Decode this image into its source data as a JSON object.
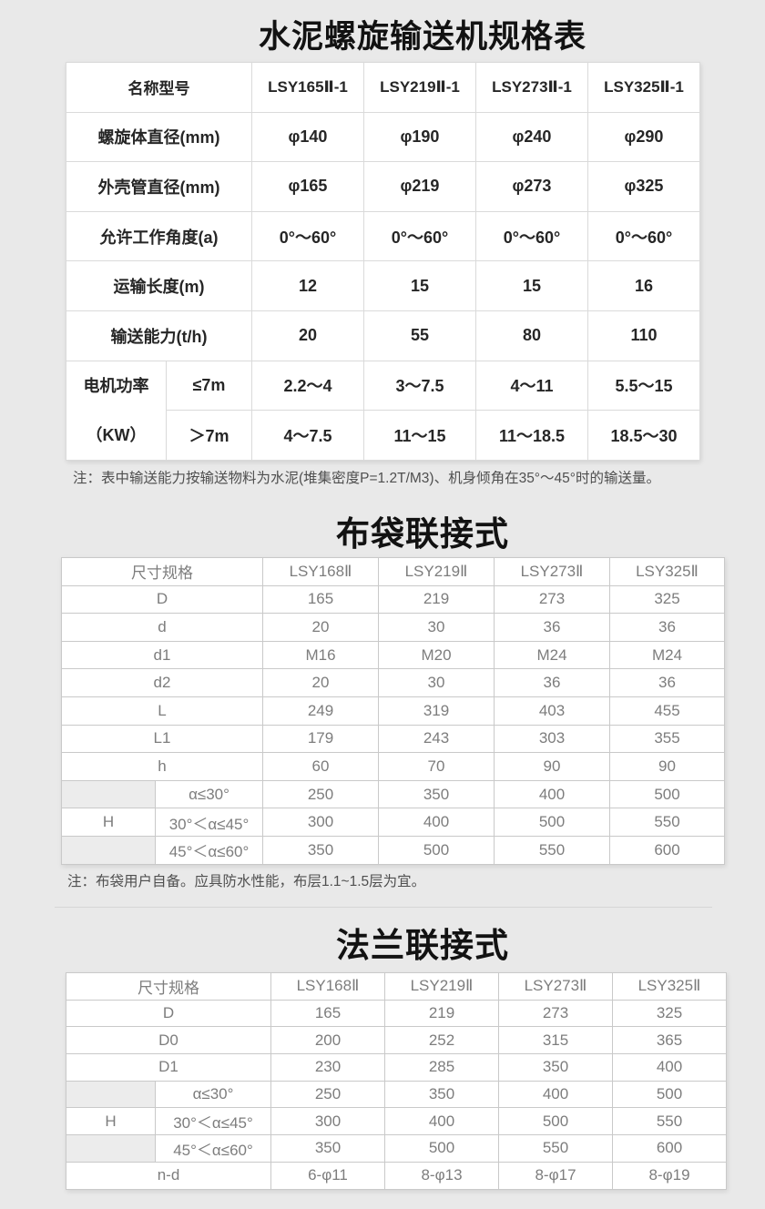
{
  "page": {
    "background": "#e9e9e9",
    "table_bg": "#ffffff",
    "gray_cell": "#ececec",
    "title_color": "#121212",
    "spec_text_color": "#262626",
    "dim_text_color": "#7d7d7d"
  },
  "spec_table": {
    "title": "水泥螺旋输送机规格表",
    "header": [
      "名称型号",
      "LSY165Ⅱ-1",
      "LSY219Ⅱ-1",
      "LSY273Ⅱ-1",
      "LSY325Ⅱ-1"
    ],
    "rows": [
      {
        "label": "螺旋体直径(mm)",
        "values": [
          "φ140",
          "φ190",
          "φ240",
          "φ290"
        ]
      },
      {
        "label": "外壳管直径(mm)",
        "values": [
          "φ165",
          "φ219",
          "φ273",
          "φ325"
        ]
      },
      {
        "label": "允许工作角度(a)",
        "values": [
          "0°～60°",
          "0°～60°",
          "0°～60°",
          "0°～60°"
        ]
      },
      {
        "label": "运输长度(m)",
        "values": [
          "12",
          "15",
          "15",
          "16"
        ]
      },
      {
        "label": "输送能力(t/h)",
        "values": [
          "20",
          "55",
          "80",
          "110"
        ]
      }
    ],
    "motor_block": {
      "label_line1": "电机功率",
      "label_line2": "（KW）",
      "rows": [
        {
          "cond": "≤7m",
          "values": [
            "2.2～4",
            "3～7.5",
            "4～11",
            "5.5～15"
          ]
        },
        {
          "cond": "＞7m",
          "values": [
            "4～7.5",
            "11～15",
            "11～18.5",
            "18.5～30"
          ]
        }
      ]
    },
    "note": "注：表中输送能力按输送物料为水泥(堆集密度P=1.2T/M3)、机身倾角在35°～45°时的输送量。"
  },
  "bag_table": {
    "title": "布袋联接式",
    "header": [
      "尺寸规格",
      "LSY168Ⅱ",
      "LSY219Ⅱ",
      "LSY273Ⅱ",
      "LSY325Ⅱ"
    ],
    "rows": [
      {
        "label": "D",
        "values": [
          "165",
          "219",
          "273",
          "325"
        ]
      },
      {
        "label": "d",
        "values": [
          "20",
          "30",
          "36",
          "36"
        ]
      },
      {
        "label": "d1",
        "values": [
          "M16",
          "M20",
          "M24",
          "M24"
        ]
      },
      {
        "label": "d2",
        "values": [
          "20",
          "30",
          "36",
          "36"
        ]
      },
      {
        "label": "L",
        "values": [
          "249",
          "319",
          "403",
          "455"
        ]
      },
      {
        "label": "L1",
        "values": [
          "179",
          "243",
          "303",
          "355"
        ]
      },
      {
        "label": "h",
        "values": [
          "60",
          "70",
          "90",
          "90"
        ]
      }
    ],
    "h_block": {
      "label": "H",
      "rows": [
        {
          "cond": "α≤30°",
          "values": [
            "250",
            "350",
            "400",
            "500"
          ]
        },
        {
          "cond": "30°＜α≤45°",
          "values": [
            "300",
            "400",
            "500",
            "550"
          ]
        },
        {
          "cond": "45°＜α≤60°",
          "values": [
            "350",
            "500",
            "550",
            "600"
          ]
        }
      ]
    },
    "rows_after": [],
    "note": "注：布袋用户自备。应具防水性能，布层1.1~1.5层为宜。"
  },
  "flange_table": {
    "title": "法兰联接式",
    "header": [
      "尺寸规格",
      "LSY168Ⅱ",
      "LSY219Ⅱ",
      "LSY273Ⅱ",
      "LSY325Ⅱ"
    ],
    "rows": [
      {
        "label": "D",
        "values": [
          "165",
          "219",
          "273",
          "325"
        ]
      },
      {
        "label": "D0",
        "values": [
          "200",
          "252",
          "315",
          "365"
        ]
      },
      {
        "label": "D1",
        "values": [
          "230",
          "285",
          "350",
          "400"
        ]
      }
    ],
    "h_block": {
      "label": "H",
      "rows": [
        {
          "cond": "α≤30°",
          "values": [
            "250",
            "350",
            "400",
            "500"
          ]
        },
        {
          "cond": "30°＜α≤45°",
          "values": [
            "300",
            "400",
            "500",
            "550"
          ]
        },
        {
          "cond": "45°＜α≤60°",
          "values": [
            "350",
            "500",
            "550",
            "600"
          ]
        }
      ]
    },
    "rows_after": [
      {
        "label": "n-d",
        "values": [
          "6-φ11",
          "8-φ13",
          "8-φ17",
          "8-φ19"
        ]
      }
    ]
  }
}
